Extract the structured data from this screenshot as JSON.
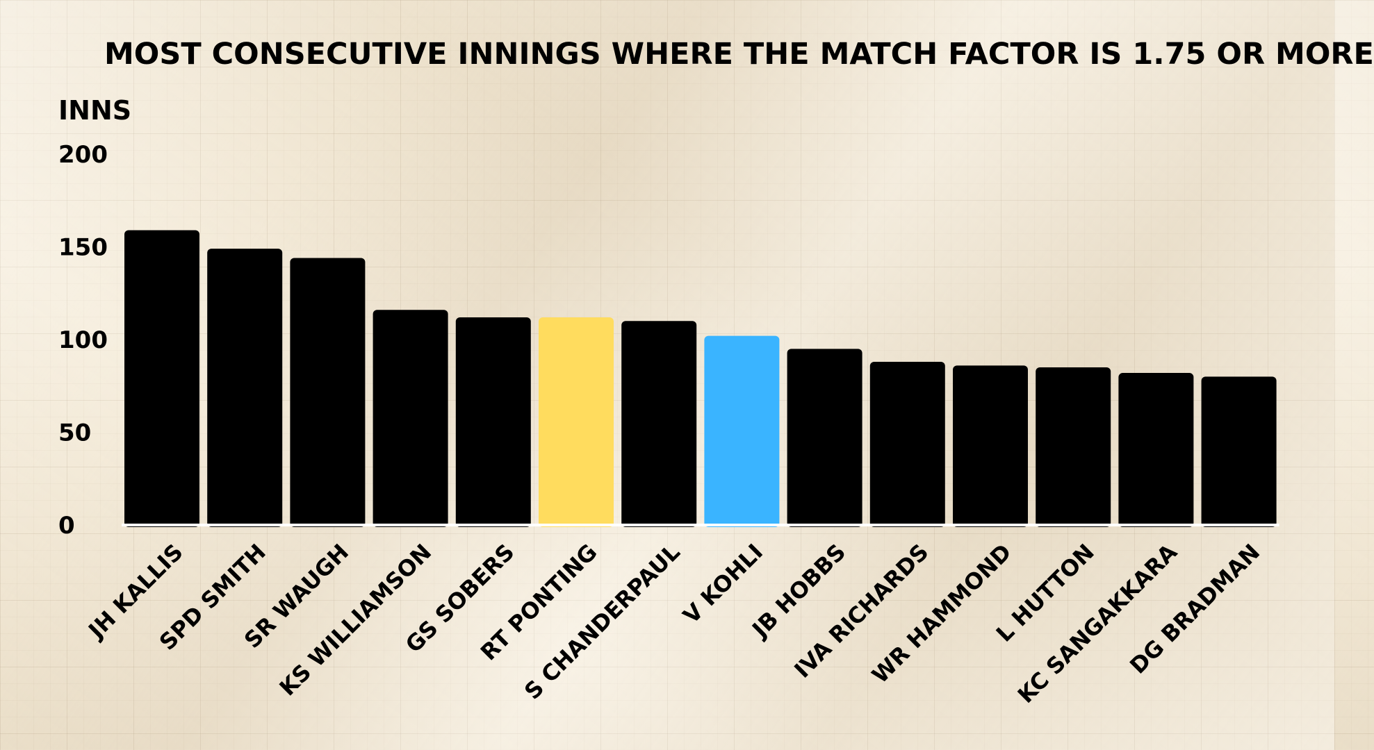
{
  "chart_data": {
    "type": "bar",
    "title": "MOST CONSECUTIVE INNINGS WHERE THE MATCH FACTOR IS 1.75 OR MORE",
    "ylabel": "INNS",
    "xlabel": "",
    "ylim": [
      0,
      200
    ],
    "yticks": [
      "0",
      "50",
      "100",
      "150",
      "200"
    ],
    "categories": [
      "JH KALLIS",
      "SPD SMITH",
      "SR WAUGH",
      "KS WILLIAMSON",
      "GS SOBERS",
      "RT PONTING",
      "S CHANDERPAUL",
      "V KOHLI",
      "JB HOBBS",
      "IVA RICHARDS",
      "WR HAMMOND",
      "L HUTTON",
      "KC SANGAKKARA",
      "DG BRADMAN"
    ],
    "values": [
      159,
      149,
      144,
      116,
      112,
      112,
      110,
      102,
      95,
      88,
      86,
      85,
      82,
      80
    ],
    "colors": [
      "#000000",
      "#000000",
      "#000000",
      "#000000",
      "#000000",
      "#ffdc5e",
      "#000000",
      "#3ab4ff",
      "#000000",
      "#000000",
      "#000000",
      "#000000",
      "#000000",
      "#000000"
    ],
    "grid": false,
    "legend": "none"
  }
}
